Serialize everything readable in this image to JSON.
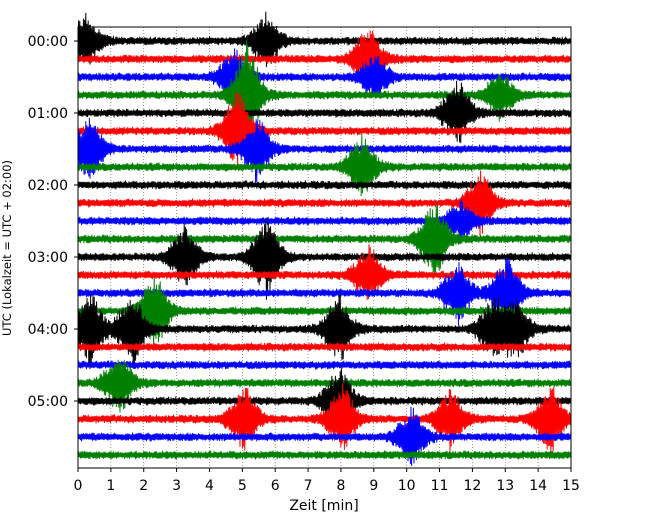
{
  "chart_data": {
    "type": "line",
    "title": "",
    "xlabel": "Zeit  [min]",
    "ylabel": "UTC (Lokalzeit = UTC + 02:00)",
    "xlim": [
      0,
      15
    ],
    "x_ticks": [
      "0",
      "1",
      "2",
      "3",
      "4",
      "5",
      "6",
      "7",
      "8",
      "9",
      "10",
      "11",
      "12",
      "13",
      "14",
      "15"
    ],
    "y_tick_labels": [
      "00:00",
      "01:00",
      "02:00",
      "03:00",
      "04:00",
      "05:00"
    ],
    "y_tick_rows": [
      0,
      4,
      8,
      12,
      16,
      20
    ],
    "grid": "vertical dotted lines at each minute",
    "row_interval_minutes": 15,
    "row_count": 24,
    "row_colors": [
      "#000000",
      "#ff0000",
      "#0000ff",
      "#008000"
    ],
    "events": [
      {
        "row": 0,
        "x": 0.2,
        "amp": 1.1
      },
      {
        "row": 0,
        "x": 5.7,
        "amp": 1.1
      },
      {
        "row": 1,
        "x": 8.8,
        "amp": 1.4
      },
      {
        "row": 2,
        "x": 4.7,
        "amp": 1.2
      },
      {
        "row": 2,
        "x": 9.0,
        "amp": 1.0
      },
      {
        "row": 3,
        "x": 5.1,
        "amp": 2.2
      },
      {
        "row": 3,
        "x": 12.8,
        "amp": 1.0
      },
      {
        "row": 4,
        "x": 11.5,
        "amp": 1.4
      },
      {
        "row": 5,
        "x": 4.8,
        "amp": 1.6
      },
      {
        "row": 6,
        "x": 0.3,
        "amp": 1.4
      },
      {
        "row": 6,
        "x": 5.4,
        "amp": 1.3
      },
      {
        "row": 7,
        "x": 8.6,
        "amp": 1.3
      },
      {
        "row": 9,
        "x": 12.2,
        "amp": 1.3
      },
      {
        "row": 10,
        "x": 11.6,
        "amp": 0.8
      },
      {
        "row": 11,
        "x": 10.8,
        "amp": 1.6
      },
      {
        "row": 12,
        "x": 3.2,
        "amp": 1.3
      },
      {
        "row": 12,
        "x": 5.7,
        "amp": 1.7
      },
      {
        "row": 13,
        "x": 8.8,
        "amp": 1.2
      },
      {
        "row": 14,
        "x": 11.5,
        "amp": 1.3
      },
      {
        "row": 14,
        "x": 13.0,
        "amp": 1.4
      },
      {
        "row": 15,
        "x": 2.3,
        "amp": 1.5
      },
      {
        "row": 16,
        "x": 0.3,
        "amp": 1.6
      },
      {
        "row": 16,
        "x": 1.6,
        "amp": 1.5
      },
      {
        "row": 16,
        "x": 7.9,
        "amp": 1.4
      },
      {
        "row": 16,
        "x": 12.6,
        "amp": 1.3
      },
      {
        "row": 16,
        "x": 13.3,
        "amp": 1.2
      },
      {
        "row": 19,
        "x": 1.2,
        "amp": 1.3
      },
      {
        "row": 20,
        "x": 7.9,
        "amp": 1.5
      },
      {
        "row": 21,
        "x": 5.0,
        "amp": 1.4
      },
      {
        "row": 21,
        "x": 8.0,
        "amp": 1.4
      },
      {
        "row": 21,
        "x": 11.3,
        "amp": 1.2
      },
      {
        "row": 21,
        "x": 14.3,
        "amp": 1.5
      },
      {
        "row": 22,
        "x": 10.1,
        "amp": 1.2
      }
    ]
  }
}
